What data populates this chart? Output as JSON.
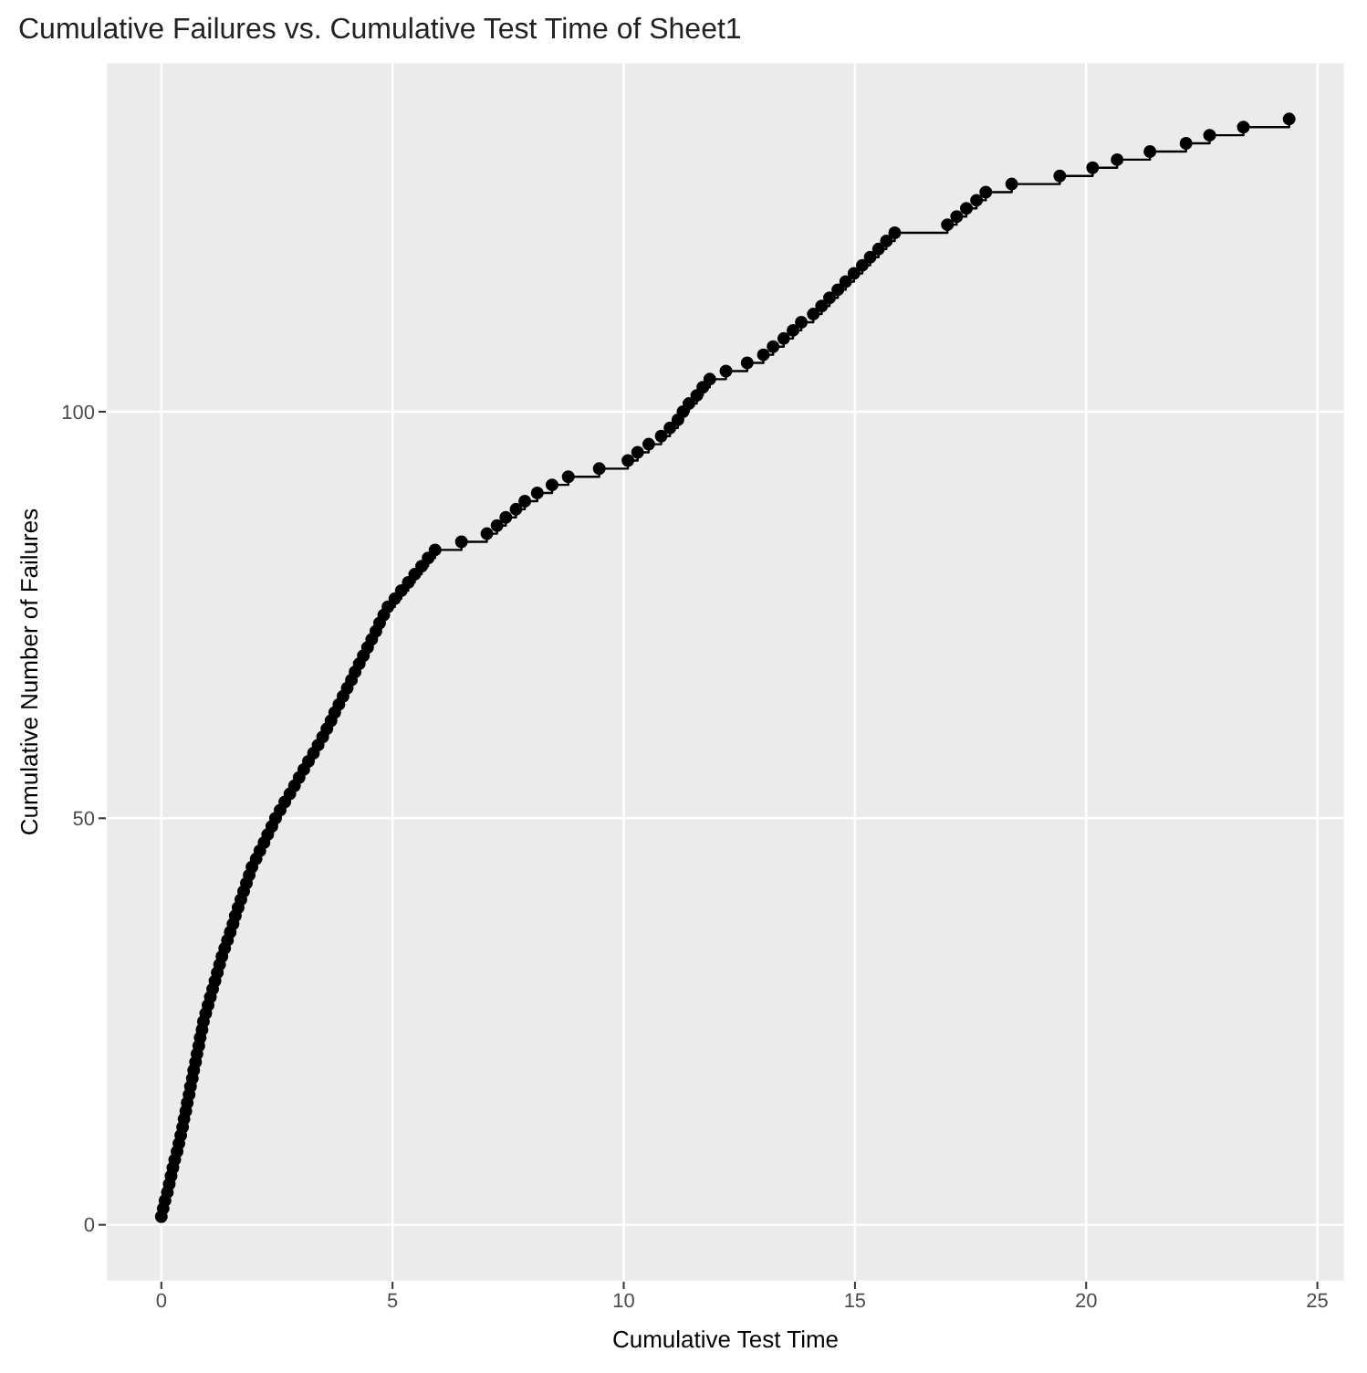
{
  "chart_data": {
    "type": "step",
    "title": "Cumulative Failures vs. Cumulative Test Time of Sheet1",
    "xlabel": "Cumulative Test Time",
    "ylabel": "Cumulative Number of Failures",
    "xlim": [
      -1.2,
      25.6
    ],
    "xticks": [
      0,
      5,
      10,
      15,
      20,
      25
    ],
    "ylim": [
      -7,
      143
    ],
    "yticks": [
      0,
      50,
      100
    ],
    "grid": true,
    "marker": "circle",
    "line_style": "solid",
    "series": [
      {
        "color": "#000000",
        "x": [
          0,
          0.04,
          0.08,
          0.13,
          0.17,
          0.21,
          0.25,
          0.29,
          0.34,
          0.38,
          0.42,
          0.46,
          0.49,
          0.53,
          0.56,
          0.6,
          0.63,
          0.67,
          0.7,
          0.74,
          0.77,
          0.81,
          0.84,
          0.88,
          0.91,
          0.96,
          1.01,
          1.06,
          1.11,
          1.16,
          1.21,
          1.26,
          1.31,
          1.37,
          1.43,
          1.49,
          1.55,
          1.6,
          1.66,
          1.72,
          1.78,
          1.84,
          1.9,
          1.96,
          2.05,
          2.13,
          2.22,
          2.3,
          2.39,
          2.47,
          2.57,
          2.67,
          2.78,
          2.88,
          2.98,
          3.08,
          3.18,
          3.29,
          3.39,
          3.49,
          3.58,
          3.67,
          3.75,
          3.84,
          3.93,
          4.02,
          4.11,
          4.19,
          4.28,
          4.37,
          4.46,
          4.55,
          4.64,
          4.72,
          4.81,
          4.9,
          5.05,
          5.19,
          5.34,
          5.48,
          5.63,
          5.77,
          5.92,
          6.49,
          7.04,
          7.26,
          7.45,
          7.67,
          7.86,
          8.13,
          8.45,
          8.8,
          9.47,
          10.09,
          10.3,
          10.54,
          10.81,
          11.0,
          11.17,
          11.28,
          11.41,
          11.58,
          11.71,
          11.86,
          12.21,
          12.67,
          13.02,
          13.23,
          13.46,
          13.66,
          13.84,
          14.1,
          14.28,
          14.45,
          14.63,
          14.8,
          14.98,
          15.16,
          15.33,
          15.51,
          15.68,
          15.86,
          17.0,
          17.2,
          17.41,
          17.63,
          17.83,
          18.39,
          19.43,
          20.14,
          20.67,
          21.38,
          22.16,
          22.67,
          23.4,
          24.39
        ],
        "values": [
          1,
          2,
          3,
          4,
          5,
          6,
          7,
          8,
          9,
          10,
          11,
          12,
          13,
          14,
          15,
          16,
          17,
          18,
          19,
          20,
          21,
          22,
          23,
          24,
          25,
          26,
          27,
          28,
          29,
          30,
          31,
          32,
          33,
          34,
          35,
          36,
          37,
          38,
          39,
          40,
          41,
          42,
          43,
          44,
          45,
          46,
          47,
          48,
          49,
          50,
          51,
          52,
          53,
          54,
          55,
          56,
          57,
          58,
          59,
          60,
          61,
          62,
          63,
          64,
          65,
          66,
          67,
          68,
          69,
          70,
          71,
          72,
          73,
          74,
          75,
          76,
          77,
          78,
          79,
          80,
          81,
          82,
          83,
          84,
          85,
          86,
          87,
          88,
          89,
          90,
          91,
          92,
          93,
          94,
          95,
          96,
          97,
          98,
          99,
          100,
          101,
          102,
          103,
          104,
          105,
          106,
          107,
          108,
          109,
          110,
          111,
          112,
          113,
          114,
          115,
          116,
          117,
          118,
          119,
          120,
          121,
          122,
          123,
          124,
          125,
          126,
          127,
          128,
          129,
          130,
          131,
          132,
          133,
          134,
          135,
          136
        ]
      }
    ]
  }
}
